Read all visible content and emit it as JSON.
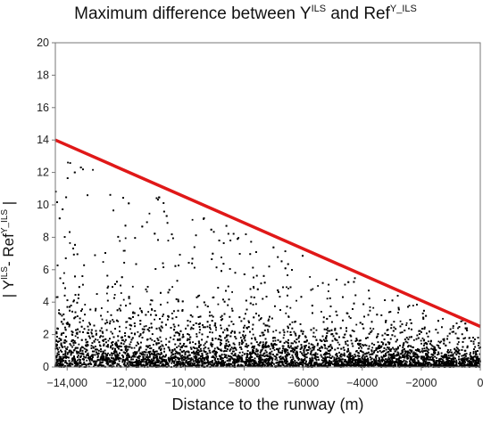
{
  "chart_data": {
    "type": "scatter",
    "title": {
      "prefix": "Maximum difference between Y",
      "sup1": "ILS",
      "middle": " and Ref",
      "sup2": "Y_ILS"
    },
    "ylabel": {
      "prefix": "| Y",
      "sup1": "ILS",
      "middle": "- Ref",
      "sup2": "Y_ILS",
      "suffix": " |"
    },
    "xlabel": "Distance to the runway (m)",
    "xlim": [
      -14400,
      0
    ],
    "ylim": [
      0,
      20
    ],
    "x_ticks": [
      {
        "value": -14000,
        "label": "−14,000"
      },
      {
        "value": -12000,
        "label": "−12,000"
      },
      {
        "value": -10000,
        "label": "−10,000"
      },
      {
        "value": -8000,
        "label": "−8000"
      },
      {
        "value": -6000,
        "label": "−6000"
      },
      {
        "value": -4000,
        "label": "−4000"
      },
      {
        "value": -2000,
        "label": "−2000"
      },
      {
        "value": 0,
        "label": "0"
      }
    ],
    "y_ticks": [
      0,
      2,
      4,
      6,
      8,
      10,
      12,
      14,
      16,
      18,
      20
    ],
    "bound_line": {
      "x": [
        -14400,
        0
      ],
      "y": [
        14.0,
        2.5
      ],
      "color": "#e01818"
    },
    "point_color": "#000000",
    "grid": false
  }
}
